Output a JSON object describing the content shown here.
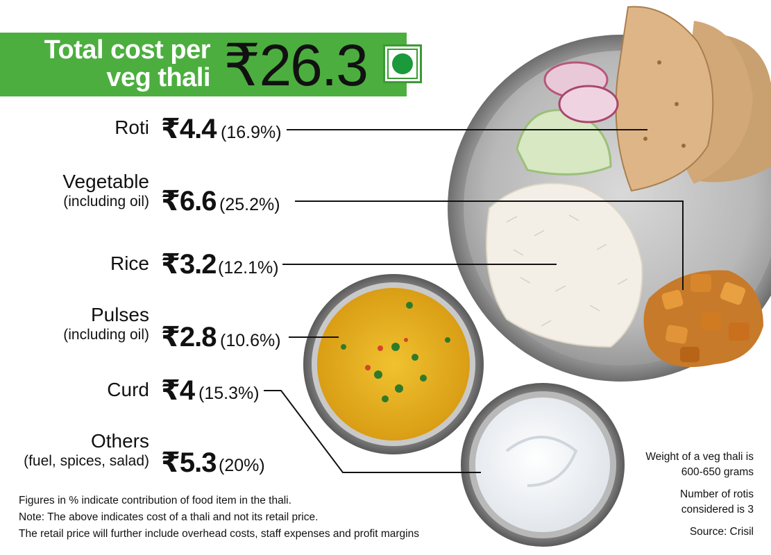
{
  "header": {
    "title_line1": "Total cost per",
    "title_line2": "veg thali",
    "total": "₹26.3",
    "veg_mark_color": "#1a9a3a",
    "banner_color": "#4cae3f"
  },
  "items": [
    {
      "name": "Roti",
      "sub": "",
      "value": "₹4.4",
      "percent": "(16.9%)"
    },
    {
      "name": "Vegetable",
      "sub": "(including oil)",
      "value": "₹6.6",
      "percent": "(25.2%)"
    },
    {
      "name": "Rice",
      "sub": "",
      "value": "₹3.2",
      "percent": "(12.1%)"
    },
    {
      "name": "Pulses",
      "sub": "(including oil)",
      "value": "₹2.8",
      "percent": "(10.6%)"
    },
    {
      "name": "Curd",
      "sub": "",
      "value": "₹4",
      "percent": "(15.3%)"
    },
    {
      "name": "Others",
      "sub": "(fuel, spices, salad)",
      "value": "₹5.3",
      "percent": "(20%)"
    }
  ],
  "notes": {
    "line1": "Figures in % indicate contribution of food item in the thali.",
    "line2": "Note: The above indicates cost of a thali and not its retail price.",
    "line3": "The retail price will further include overhead costs, staff expenses  and profit margins"
  },
  "side_notes": {
    "weight": "Weight of a veg thali is 600-650 grams",
    "rotis": "Number of rotis considered is 3",
    "source": "Source: Crisil"
  }
}
